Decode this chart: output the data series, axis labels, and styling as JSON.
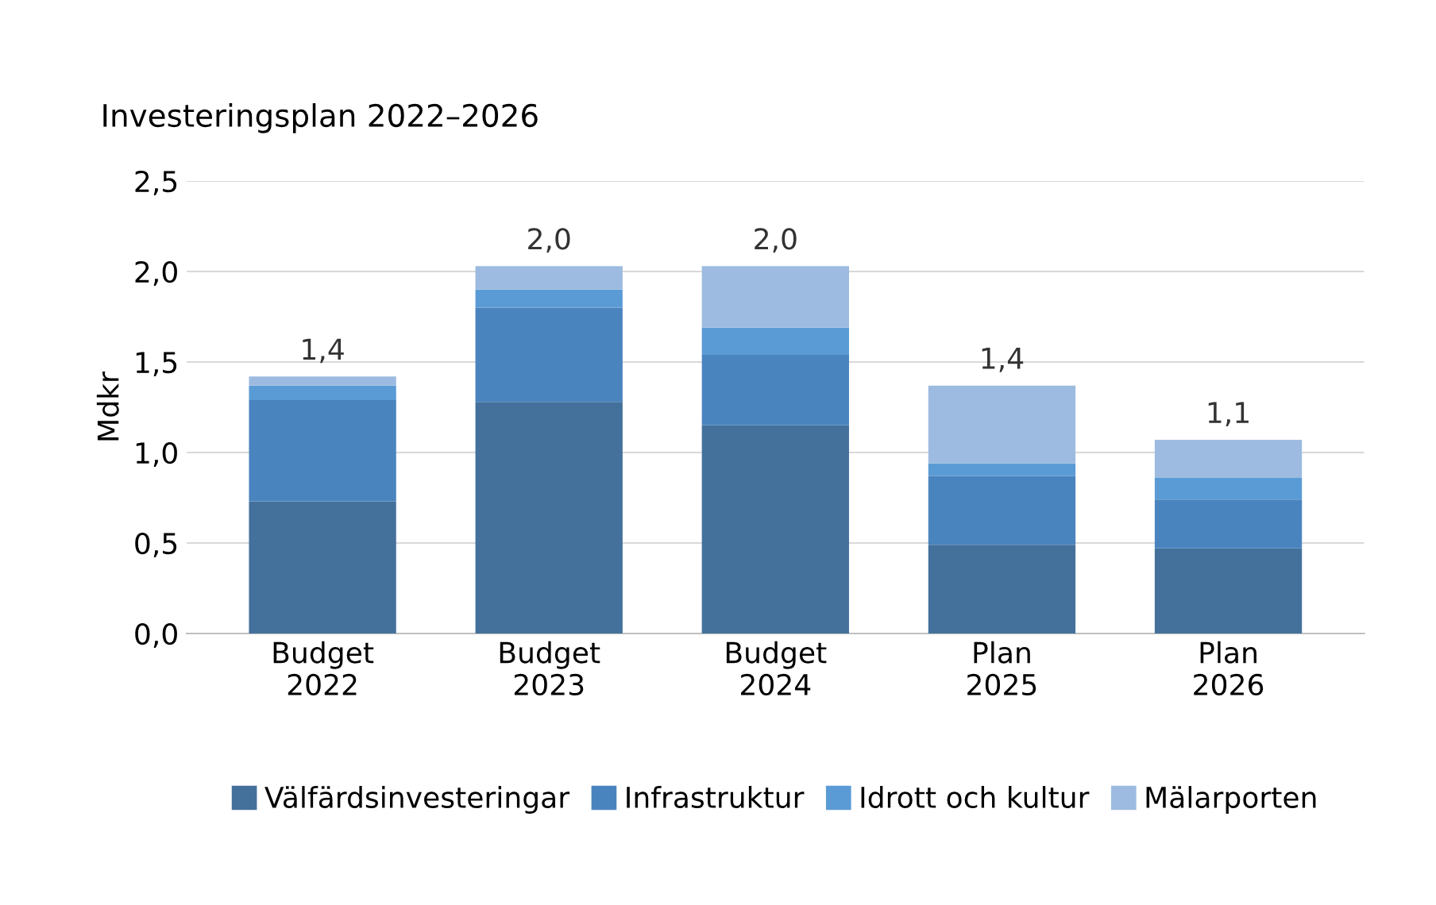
{
  "chart_data": {
    "type": "bar",
    "title": "Investeringsplan 2022–2026",
    "ylabel": "Mdkr",
    "categories": [
      "Budget\n2022",
      "Budget\n2023",
      "Budget\n2024",
      "Plan\n2025",
      "Plan\n2026"
    ],
    "stacked": true,
    "series": [
      {
        "name": "Välfärdsinvesteringar",
        "color": "#44719b",
        "values": [
          0.73,
          1.28,
          1.15,
          0.49,
          0.47
        ]
      },
      {
        "name": "Infrastruktur",
        "color": "#4a84be",
        "values": [
          0.56,
          0.52,
          0.39,
          0.38,
          0.27
        ]
      },
      {
        "name": "Idrott och kultur",
        "color": "#5b9bd5",
        "values": [
          0.08,
          0.1,
          0.15,
          0.07,
          0.12
        ]
      },
      {
        "name": "Mälarporten",
        "color": "#9dbbe0",
        "values": [
          0.05,
          0.13,
          0.34,
          0.43,
          0.21
        ]
      }
    ],
    "totals": [
      "1,4",
      "2,0",
      "2,0",
      "1,4",
      "1,1"
    ],
    "ylim": [
      0,
      2.5
    ],
    "yticks": [
      {
        "value": 0,
        "label": "0,0"
      },
      {
        "value": 0.5,
        "label": "0,5"
      },
      {
        "value": 1.0,
        "label": "1,0"
      },
      {
        "value": 1.5,
        "label": "1,5"
      },
      {
        "value": 2.0,
        "label": "2,0"
      },
      {
        "value": 2.5,
        "label": "2,5"
      }
    ],
    "grid": "y",
    "legend": "bottom"
  }
}
